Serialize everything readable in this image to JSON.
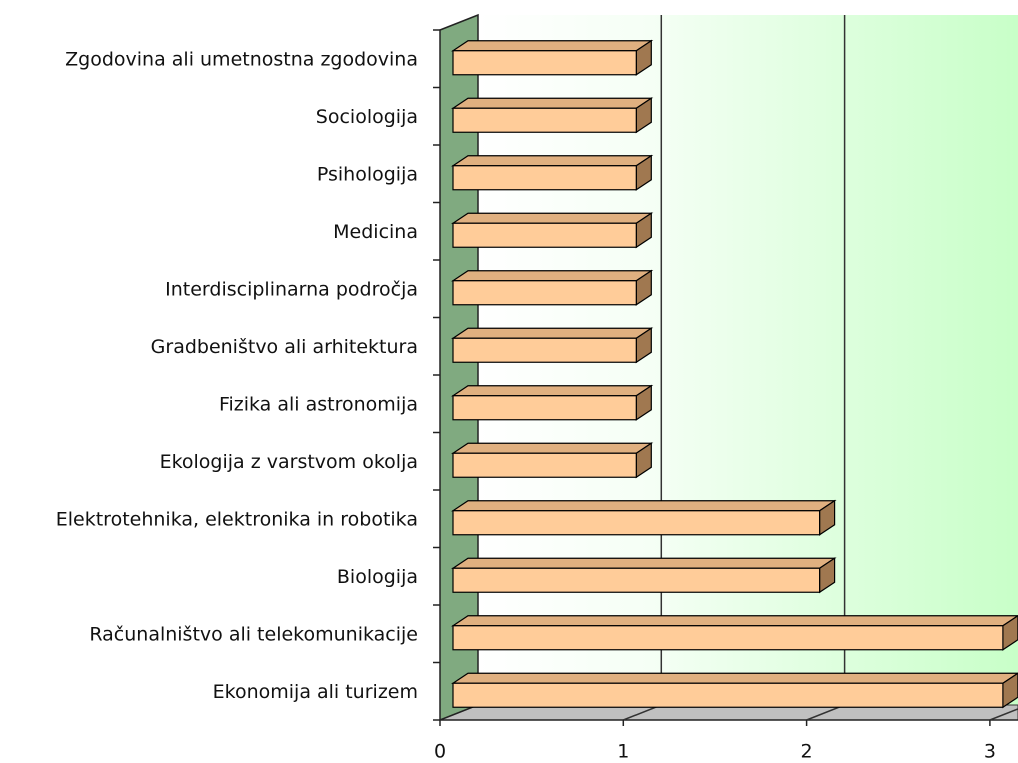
{
  "chart_data": {
    "type": "bar3d_horizontal",
    "categories": [
      "Zgodovina ali umetnostna zgodovina",
      "Sociologija",
      "Psihologija",
      "Medicina",
      "Interdisciplinarna področja",
      "Gradbeništvo ali arhitektura",
      "Fizika ali astronomija",
      "Ekologija z varstvom okolja",
      "Elektrotehnika, elektronika in robotika",
      "Biologija",
      "Računalništvo ali telekomunikacije",
      "Ekonomija ali turizem"
    ],
    "values": [
      1,
      1,
      1,
      1,
      1,
      1,
      1,
      1,
      2,
      2,
      3,
      3
    ],
    "color": "#ffcc99",
    "xlim": [
      0,
      3
    ],
    "xticks": [
      0,
      1,
      2,
      3
    ],
    "grid": true
  }
}
